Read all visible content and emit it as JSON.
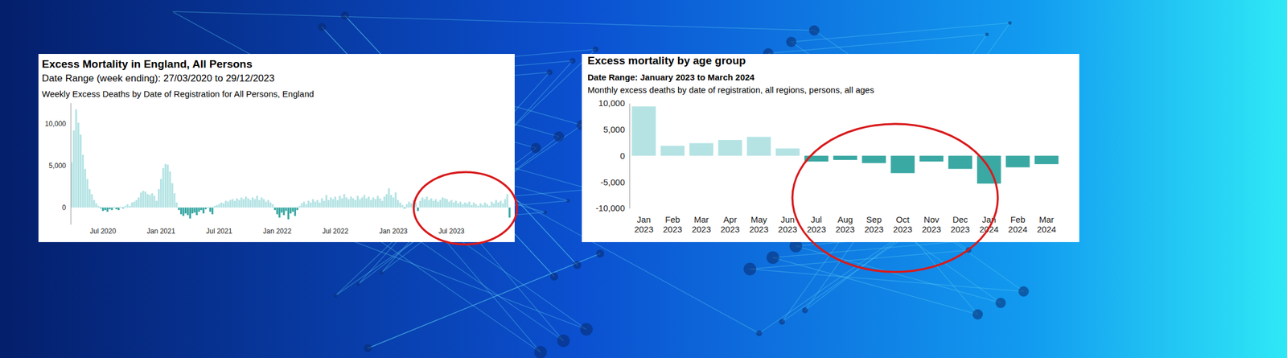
{
  "chart_data": [
    {
      "type": "bar",
      "title": "Excess Mortality in England, All Persons",
      "subtitle": "Date Range (week ending): 27/03/2020 to 29/12/2023",
      "description": "Weekly Excess Deaths by Date of Registration for All Persons, England",
      "categories": [
        null,
        null,
        null,
        null,
        null,
        null,
        null,
        null,
        null,
        null,
        null,
        null,
        null,
        null,
        "Jul 2020",
        null,
        null,
        null,
        null,
        null,
        null,
        null,
        null,
        null,
        null,
        null,
        null,
        null,
        null,
        null,
        null,
        null,
        null,
        null,
        null,
        null,
        null,
        null,
        null,
        null,
        "Jan 2021",
        null,
        null,
        null,
        null,
        null,
        null,
        null,
        null,
        null,
        null,
        null,
        null,
        null,
        null,
        null,
        null,
        null,
        null,
        null,
        null,
        null,
        null,
        null,
        null,
        null,
        "Jul 2021",
        null,
        null,
        null,
        null,
        null,
        null,
        null,
        null,
        null,
        null,
        null,
        null,
        null,
        null,
        null,
        null,
        null,
        null,
        null,
        null,
        null,
        null,
        null,
        null,
        null,
        "Jan 2022",
        null,
        null,
        null,
        null,
        null,
        null,
        null,
        null,
        null,
        null,
        null,
        null,
        null,
        null,
        null,
        null,
        null,
        null,
        null,
        null,
        null,
        null,
        null,
        null,
        null,
        "Jul 2022",
        null,
        null,
        null,
        null,
        null,
        null,
        null,
        null,
        null,
        null,
        null,
        null,
        null,
        null,
        null,
        null,
        null,
        null,
        null,
        null,
        null,
        null,
        null,
        null,
        null,
        "Jan 2023",
        null,
        null,
        null,
        null,
        null,
        null,
        null,
        null,
        null,
        null,
        null,
        null,
        null,
        null,
        null,
        null,
        null,
        null,
        null,
        null,
        null,
        null,
        null,
        null,
        null,
        "Jul 2023",
        null,
        null,
        null,
        null,
        null,
        null,
        null,
        null,
        null,
        null,
        null,
        null,
        null,
        null,
        null,
        null,
        null,
        null,
        null,
        null,
        null,
        null,
        null,
        null,
        null,
        null
      ],
      "values": [
        5400,
        9200,
        11700,
        10100,
        8700,
        6300,
        4600,
        3400,
        2200,
        1600,
        900,
        500,
        200,
        -100,
        -400,
        -300,
        -500,
        -200,
        -300,
        100,
        -200,
        -300,
        100,
        -100,
        200,
        400,
        200,
        600,
        700,
        900,
        1200,
        1800,
        2000,
        1900,
        1600,
        1500,
        1700,
        1400,
        800,
        2200,
        3400,
        4700,
        5200,
        5100,
        4300,
        2900,
        1700,
        600,
        -300,
        -800,
        -1000,
        -700,
        -900,
        -1300,
        -700,
        -600,
        -900,
        -500,
        -300,
        -700,
        -200,
        100,
        -500,
        -800,
        200,
        300,
        400,
        600,
        500,
        800,
        700,
        900,
        1000,
        800,
        1100,
        900,
        1200,
        1000,
        1300,
        1100,
        900,
        1200,
        1000,
        1400,
        900,
        1200,
        1000,
        700,
        900,
        600,
        400,
        -300,
        -800,
        -1200,
        -600,
        -900,
        -400,
        -1400,
        -700,
        -500,
        -1000,
        -300,
        200,
        500,
        700,
        400,
        800,
        600,
        1000,
        700,
        900,
        600,
        1100,
        800,
        1500,
        900,
        1200,
        1000,
        1300,
        900,
        1400,
        1100,
        1600,
        1200,
        1000,
        1300,
        1100,
        900,
        1400,
        1000,
        1200,
        1500,
        1100,
        1300,
        900,
        1200,
        1000,
        1400,
        1100,
        800,
        1300,
        1600,
        2300,
        1500,
        1200,
        1800,
        900,
        600,
        300,
        -100,
        400,
        700,
        500,
        900,
        600,
        -400,
        800,
        1200,
        1000,
        1300,
        900,
        1100,
        800,
        1000,
        700,
        900,
        1200,
        1100,
        1000,
        700,
        900,
        600,
        800,
        500,
        700,
        400,
        600,
        500,
        700,
        300,
        600,
        400,
        200,
        500,
        300,
        600,
        400,
        200,
        700,
        500,
        900,
        600,
        800,
        500,
        1000,
        1600,
        -1200
      ],
      "colors": [
        "#b5e3e4",
        "#b5e3e4",
        "#b5e3e4",
        "#b5e3e4",
        "#b5e3e4",
        "#b5e3e4",
        "#b5e3e4",
        "#b5e3e4",
        "#b5e3e4",
        "#b5e3e4",
        "#b5e3e4",
        "#b5e3e4",
        "#b5e3e4",
        "#3aa8a3",
        "#3aa8a3",
        "#3aa8a3",
        "#3aa8a3",
        "#3aa8a3",
        "#3aa8a3",
        "#b5e3e4",
        "#3aa8a3",
        "#3aa8a3",
        "#b5e3e4",
        "#3aa8a3",
        "#b5e3e4",
        "#b5e3e4",
        "#b5e3e4",
        "#b5e3e4",
        "#b5e3e4",
        "#b5e3e4",
        "#b5e3e4",
        "#b5e3e4",
        "#b5e3e4",
        "#b5e3e4",
        "#b5e3e4",
        "#b5e3e4",
        "#b5e3e4",
        "#b5e3e4",
        "#b5e3e4",
        "#b5e3e4",
        "#b5e3e4",
        "#b5e3e4",
        "#b5e3e4",
        "#b5e3e4",
        "#b5e3e4",
        "#b5e3e4",
        "#b5e3e4",
        "#b5e3e4",
        "#3aa8a3",
        "#3aa8a3",
        "#3aa8a3",
        "#3aa8a3",
        "#3aa8a3",
        "#3aa8a3",
        "#3aa8a3",
        "#3aa8a3",
        "#3aa8a3",
        "#3aa8a3",
        "#3aa8a3",
        "#3aa8a3",
        "#3aa8a3",
        "#b5e3e4",
        "#3aa8a3",
        "#3aa8a3",
        "#b5e3e4",
        "#b5e3e4",
        "#b5e3e4",
        "#b5e3e4",
        "#b5e3e4",
        "#b5e3e4",
        "#b5e3e4",
        "#b5e3e4",
        "#b5e3e4",
        "#b5e3e4",
        "#b5e3e4",
        "#b5e3e4",
        "#b5e3e4",
        "#b5e3e4",
        "#b5e3e4",
        "#b5e3e4",
        "#b5e3e4",
        "#b5e3e4",
        "#b5e3e4",
        "#b5e3e4",
        "#b5e3e4",
        "#b5e3e4",
        "#b5e3e4",
        "#b5e3e4",
        "#b5e3e4",
        "#b5e3e4",
        "#b5e3e4",
        "#3aa8a3",
        "#3aa8a3",
        "#3aa8a3",
        "#3aa8a3",
        "#3aa8a3",
        "#3aa8a3",
        "#3aa8a3",
        "#3aa8a3",
        "#3aa8a3",
        "#3aa8a3",
        "#3aa8a3",
        "#b5e3e4",
        "#b5e3e4",
        "#b5e3e4",
        "#b5e3e4",
        "#b5e3e4",
        "#b5e3e4",
        "#b5e3e4",
        "#b5e3e4",
        "#b5e3e4",
        "#b5e3e4",
        "#b5e3e4",
        "#b5e3e4",
        "#b5e3e4",
        "#b5e3e4",
        "#b5e3e4",
        "#b5e3e4",
        "#b5e3e4",
        "#b5e3e4",
        "#b5e3e4",
        "#b5e3e4",
        "#b5e3e4",
        "#b5e3e4",
        "#b5e3e4",
        "#b5e3e4",
        "#b5e3e4",
        "#b5e3e4",
        "#b5e3e4",
        "#b5e3e4",
        "#b5e3e4",
        "#b5e3e4",
        "#b5e3e4",
        "#b5e3e4",
        "#b5e3e4",
        "#b5e3e4",
        "#b5e3e4",
        "#b5e3e4",
        "#b5e3e4",
        "#b5e3e4",
        "#b5e3e4",
        "#b5e3e4",
        "#b5e3e4",
        "#b5e3e4",
        "#b5e3e4",
        "#b5e3e4",
        "#b5e3e4",
        "#b5e3e4",
        "#b5e3e4",
        "#3aa8a3",
        "#b5e3e4",
        "#b5e3e4",
        "#b5e3e4",
        "#b5e3e4",
        "#b5e3e4",
        "#3aa8a3",
        "#b5e3e4",
        "#b5e3e4",
        "#b5e3e4",
        "#b5e3e4",
        "#b5e3e4",
        "#b5e3e4",
        "#b5e3e4",
        "#b5e3e4",
        "#b5e3e4",
        "#b5e3e4",
        "#b5e3e4",
        "#b5e3e4",
        "#b5e3e4",
        "#b5e3e4",
        "#b5e3e4",
        "#b5e3e4",
        "#b5e3e4",
        "#b5e3e4",
        "#b5e3e4",
        "#b5e3e4",
        "#b5e3e4",
        "#b5e3e4",
        "#b5e3e4",
        "#b5e3e4",
        "#b5e3e4",
        "#b5e3e4",
        "#b5e3e4",
        "#b5e3e4",
        "#b5e3e4",
        "#b5e3e4",
        "#b5e3e4",
        "#b5e3e4",
        "#b5e3e4",
        "#b5e3e4",
        "#b5e3e4",
        "#b5e3e4",
        "#b5e3e4",
        "#b5e3e4",
        "#b5e3e4",
        "#b5e3e4",
        "#3aa8a3"
      ],
      "ylim": [
        -2000,
        12500
      ],
      "yticks": [
        0,
        {
          "value": 5000,
          "label": "5,000"
        },
        {
          "value": 10000,
          "label": "10,000"
        }
      ]
    },
    {
      "type": "bar",
      "title": "Excess mortality by age group",
      "subtitle": "Date Range: January 2023 to March 2024",
      "description": "Monthly excess deaths by date of registration, all regions, persons, all ages",
      "categories": [
        "Jan 2023",
        "Feb 2023",
        "Mar 2023",
        "Apr 2023",
        "May 2023",
        "Jun 2023",
        "Jul 2023",
        "Aug 2023",
        "Sep 2023",
        "Oct 2023",
        "Nov 2023",
        "Dec 2023",
        "Jan 2024",
        "Feb 2024",
        "Mar 2024"
      ],
      "values": [
        9400,
        1900,
        2400,
        3000,
        3600,
        1400,
        -1100,
        -800,
        -1400,
        -3300,
        -1100,
        -2500,
        -5300,
        -2200,
        -1600
      ],
      "colors": [
        "#b5e3e4",
        "#b5e3e4",
        "#b5e3e4",
        "#b5e3e4",
        "#b5e3e4",
        "#b5e3e4",
        "#3aa8a3",
        "#3aa8a3",
        "#3aa8a3",
        "#3aa8a3",
        "#3aa8a3",
        "#3aa8a3",
        "#3aa8a3",
        "#3aa8a3",
        "#3aa8a3"
      ],
      "ylim": [
        -10000,
        10000
      ],
      "yticks": [
        {
          "value": -10000,
          "label": "-10,000"
        },
        {
          "value": -5000,
          "label": "-5,000"
        },
        0,
        {
          "value": 5000,
          "label": "5,000"
        },
        {
          "value": 10000,
          "label": "10,000"
        }
      ]
    }
  ]
}
